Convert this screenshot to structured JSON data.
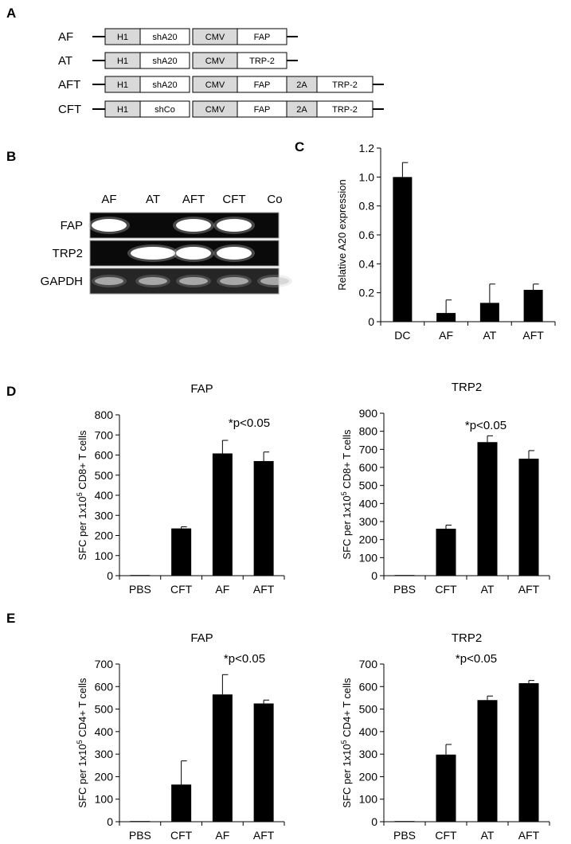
{
  "panel_labels": [
    "A",
    "B",
    "C",
    "D",
    "E"
  ],
  "constructs": [
    {
      "name": "AF",
      "segments": [
        "H1",
        "shA20",
        "CMV",
        "FAP"
      ]
    },
    {
      "name": "AT",
      "segments": [
        "H1",
        "shA20",
        "CMV",
        "TRP-2"
      ]
    },
    {
      "name": "AFT",
      "segments": [
        "H1",
        "shA20",
        "CMV",
        "FAP",
        "2A",
        "TRP-2"
      ]
    },
    {
      "name": "CFT",
      "segments": [
        "H1",
        "shCo",
        "CMV",
        "FAP",
        "2A",
        "TRP-2"
      ]
    }
  ],
  "gel": {
    "lanes": [
      "AF",
      "AT",
      "AFT",
      "CFT",
      "Co"
    ],
    "rows": [
      {
        "name": "FAP",
        "bands": [
          1,
          0,
          1,
          1,
          0
        ]
      },
      {
        "name": "TRP2",
        "bands": [
          0,
          1,
          1,
          1,
          0
        ]
      },
      {
        "name": "GAPDH",
        "bands": [
          1,
          1,
          1,
          1,
          1
        ]
      }
    ]
  },
  "chart_data": [
    {
      "panel": "C",
      "type": "bar",
      "title": "",
      "xlabel": "",
      "ylabel": "Relative A20 expression",
      "categories": [
        "DC",
        "AF",
        "AT",
        "AFT"
      ],
      "values": [
        1.0,
        0.06,
        0.13,
        0.22
      ],
      "errors": [
        0.1,
        0.09,
        0.13,
        0.04
      ],
      "ylim": [
        0,
        1.2
      ],
      "yticks": [
        "0",
        "0.2",
        "0.4",
        "0.6",
        "0.8",
        "1.0",
        "1.2"
      ],
      "annotation": ""
    },
    {
      "panel": "D1",
      "type": "bar",
      "title": "FAP",
      "xlabel": "",
      "ylabel": "SFC per 1x10⁵ CD8+ T cells",
      "categories": [
        "PBS",
        "CFT",
        "AF",
        "AFT"
      ],
      "values": [
        0,
        235,
        608,
        570
      ],
      "errors": [
        0,
        8,
        65,
        45
      ],
      "ylim": [
        0,
        800
      ],
      "yticks": [
        "0",
        "100",
        "200",
        "300",
        "400",
        "500",
        "600",
        "700",
        "800"
      ],
      "annotation": "*p<0.05"
    },
    {
      "panel": "D2",
      "type": "bar",
      "title": "TRP2",
      "xlabel": "",
      "ylabel": "SFC per 1x10⁵ CD8+ T cells",
      "categories": [
        "PBS",
        "CFT",
        "AT",
        "AFT"
      ],
      "values": [
        0,
        260,
        740,
        648
      ],
      "errors": [
        0,
        20,
        35,
        45
      ],
      "ylim": [
        0,
        900
      ],
      "yticks": [
        "0",
        "100",
        "200",
        "300",
        "400",
        "500",
        "600",
        "700",
        "800",
        "900"
      ],
      "annotation": "*p<0.05"
    },
    {
      "panel": "E1",
      "type": "bar",
      "title": "FAP",
      "xlabel": "",
      "ylabel": "SFC per 1x10⁵ CD4+ T cells",
      "categories": [
        "PBS",
        "CFT",
        "AF",
        "AFT"
      ],
      "values": [
        0,
        165,
        565,
        525
      ],
      "errors": [
        0,
        105,
        88,
        15
      ],
      "ylim": [
        0,
        700
      ],
      "yticks": [
        "0",
        "100",
        "200",
        "300",
        "400",
        "500",
        "600",
        "700"
      ],
      "annotation": "*p<0.05"
    },
    {
      "panel": "E2",
      "type": "bar",
      "title": "TRP2",
      "xlabel": "",
      "ylabel": "SFC per 1x10⁵ CD4+ T cells",
      "categories": [
        "PBS",
        "CFT",
        "AT",
        "AFT"
      ],
      "values": [
        0,
        298,
        540,
        615
      ],
      "errors": [
        0,
        45,
        18,
        12
      ],
      "ylim": [
        0,
        700
      ],
      "yticks": [
        "0",
        "100",
        "200",
        "300",
        "400",
        "500",
        "600",
        "700"
      ],
      "annotation": "*p<0.05"
    }
  ],
  "colors": {
    "bar": "#000000",
    "grey_segment": "#d9d9d9",
    "gel_bg": "#0a0a0a",
    "band": "#ffffff"
  }
}
